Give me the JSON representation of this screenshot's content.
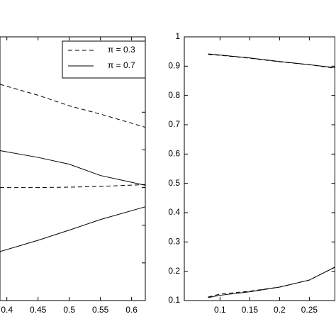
{
  "chart_data": [
    {
      "type": "line",
      "x": [
        0.389,
        0.45,
        0.5,
        0.55,
        0.622
      ],
      "xlim": [
        0.389,
        0.622
      ],
      "xticks": [
        0.4,
        0.45,
        0.5,
        0.55,
        0.6
      ],
      "ylim": [
        0,
        7
      ],
      "legend": "upper right",
      "series": [
        {
          "name": "π = 0.3",
          "color": "#000000",
          "dash": "dashed",
          "values": [
            5.74,
            5.45,
            5.17,
            4.95,
            4.6
          ]
        },
        {
          "name": "π = 0.3",
          "color": "#000000",
          "dash": "dashed",
          "values": [
            3.0,
            3.0,
            3.01,
            3.03,
            3.08
          ]
        },
        {
          "name": "π = 0.7",
          "color": "#000000",
          "dash": "solid",
          "values": [
            3.98,
            3.8,
            3.62,
            3.32,
            3.06
          ]
        },
        {
          "name": "π = 0.7",
          "color": "#000000",
          "dash": "solid",
          "values": [
            1.3,
            1.6,
            1.87,
            2.15,
            2.49
          ]
        }
      ]
    },
    {
      "type": "line",
      "x": [
        0.08,
        0.1,
        0.15,
        0.2,
        0.25,
        0.293
      ],
      "xlim": [
        0.04,
        0.293
      ],
      "xticks": [
        0.1,
        0.15,
        0.2,
        0.25
      ],
      "ylim": [
        0.1,
        1
      ],
      "yticks": [
        0.1,
        0.2,
        0.3,
        0.4,
        0.5,
        0.6,
        0.7,
        0.8,
        0.9,
        1
      ],
      "series": [
        {
          "color": "#000000",
          "dash": "dashed",
          "values": [
            0.94,
            0.937,
            0.927,
            0.915,
            0.905,
            0.893
          ]
        },
        {
          "color": "#000000",
          "dash": "solid",
          "values": [
            0.942,
            0.938,
            0.928,
            0.916,
            0.905,
            0.895
          ]
        },
        {
          "color": "#000000",
          "dash": "dashed",
          "values": [
            0.112,
            0.122,
            0.132,
            0.146,
            0.17,
            0.214
          ]
        },
        {
          "color": "#000000",
          "dash": "solid",
          "values": [
            0.11,
            0.118,
            0.13,
            0.146,
            0.17,
            0.214
          ]
        }
      ]
    }
  ]
}
